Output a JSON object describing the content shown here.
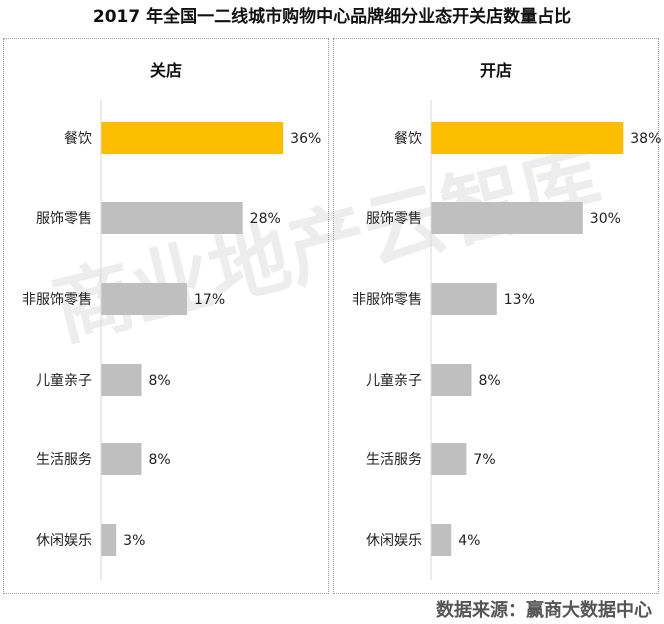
{
  "title": "2017 年全国一二线城市购物中心品牌细分业态开关店数量占比",
  "footer": "数据来源：赢商大数据中心",
  "watermark": "商业地产云智库",
  "colors": {
    "highlight": "#fcbd00",
    "bar": "#bfbfbf"
  },
  "chart_data": [
    {
      "type": "bar",
      "orientation": "horizontal",
      "title": "关店",
      "categories": [
        "餐饮",
        "服饰零售",
        "非服饰零售",
        "儿童亲子",
        "生活服务",
        "休闲娱乐"
      ],
      "values": [
        36,
        28,
        17,
        8,
        8,
        3
      ],
      "value_labels": [
        "36%",
        "28%",
        "17%",
        "8%",
        "8%",
        "3%"
      ],
      "unit": "%",
      "xlim": [
        0,
        40
      ]
    },
    {
      "type": "bar",
      "orientation": "horizontal",
      "title": "开店",
      "categories": [
        "餐饮",
        "服饰零售",
        "非服饰零售",
        "儿童亲子",
        "生活服务",
        "休闲娱乐"
      ],
      "values": [
        38,
        30,
        13,
        8,
        7,
        4
      ],
      "value_labels": [
        "38%",
        "30%",
        "13%",
        "8%",
        "7%",
        "4%"
      ],
      "unit": "%",
      "xlim": [
        0,
        40
      ]
    }
  ]
}
